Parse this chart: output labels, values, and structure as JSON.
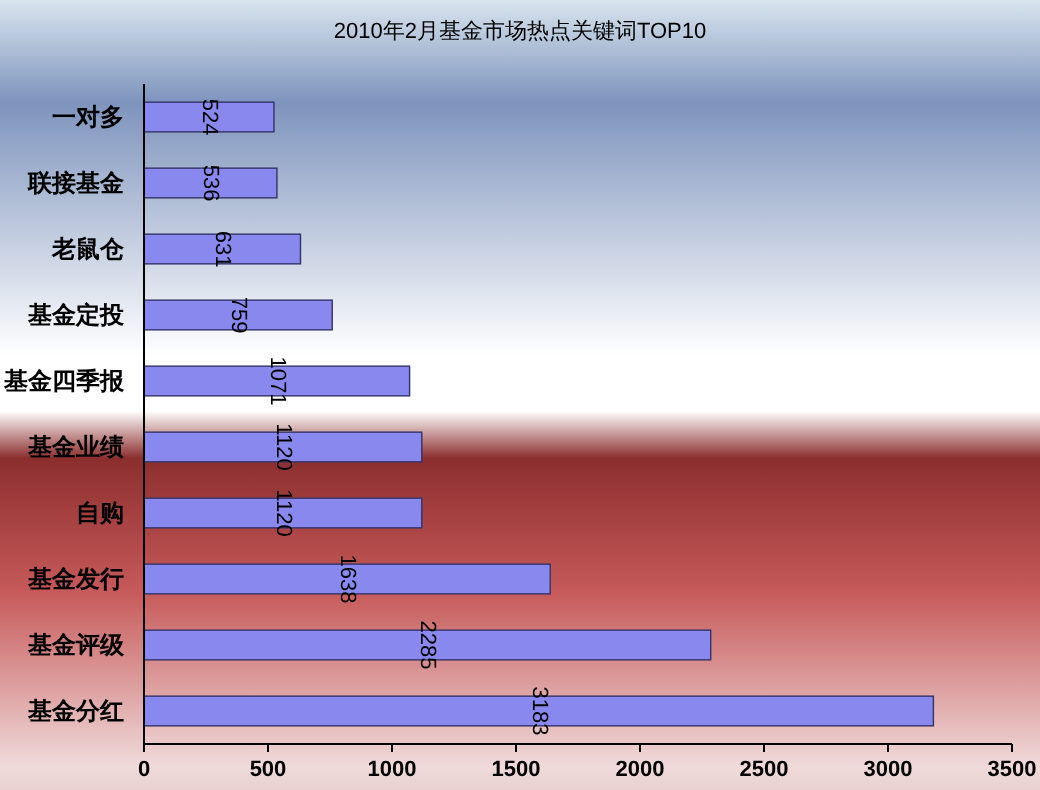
{
  "chart_data": {
    "type": "bar",
    "orientation": "horizontal",
    "title": "2010年2月基金市场热点关键词TOP10",
    "categories": [
      "一对多",
      "联接基金",
      "老鼠仓",
      "基金定投",
      "基金四季报",
      "基金业绩",
      "自购",
      "基金发行",
      "基金评级",
      "基金分红"
    ],
    "values": [
      524,
      536,
      631,
      759,
      1071,
      1120,
      1120,
      1638,
      2285,
      3183
    ],
    "color": "#8888ee",
    "xlim": [
      0,
      3500
    ],
    "xticks": [
      0,
      500,
      1000,
      1500,
      2000,
      2500,
      3000,
      3500
    ],
    "grid": false,
    "data_labels": true
  }
}
